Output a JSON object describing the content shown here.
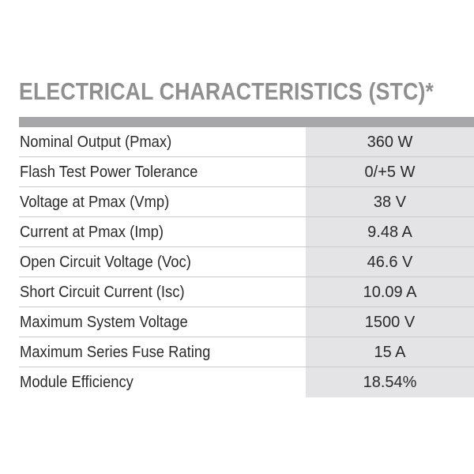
{
  "title": "ELECTRICAL CHARACTERISTICS (STC)*",
  "rows": [
    {
      "label": "Nominal Output (Pmax)",
      "value": "360 W"
    },
    {
      "label": "Flash Test Power Tolerance",
      "value": "0/+5 W"
    },
    {
      "label": "Voltage at Pmax (Vmp)",
      "value": "38 V"
    },
    {
      "label": "Current at Pmax (Imp)",
      "value": "9.48 A"
    },
    {
      "label": "Open Circuit Voltage (Voc)",
      "value": "46.6 V"
    },
    {
      "label": "Short Circuit Current (Isc)",
      "value": "10.09 A"
    },
    {
      "label": "Maximum System Voltage",
      "value": "1500 V"
    },
    {
      "label": "Maximum Series Fuse Rating",
      "value": "15 A"
    },
    {
      "label": "Module Efficiency",
      "value": "18.54%"
    }
  ],
  "colors": {
    "title": "#8f8f8f",
    "header_bar": "#a7a7aa",
    "value_cell": "#e4e4e6",
    "text": "#2a2a2a"
  }
}
